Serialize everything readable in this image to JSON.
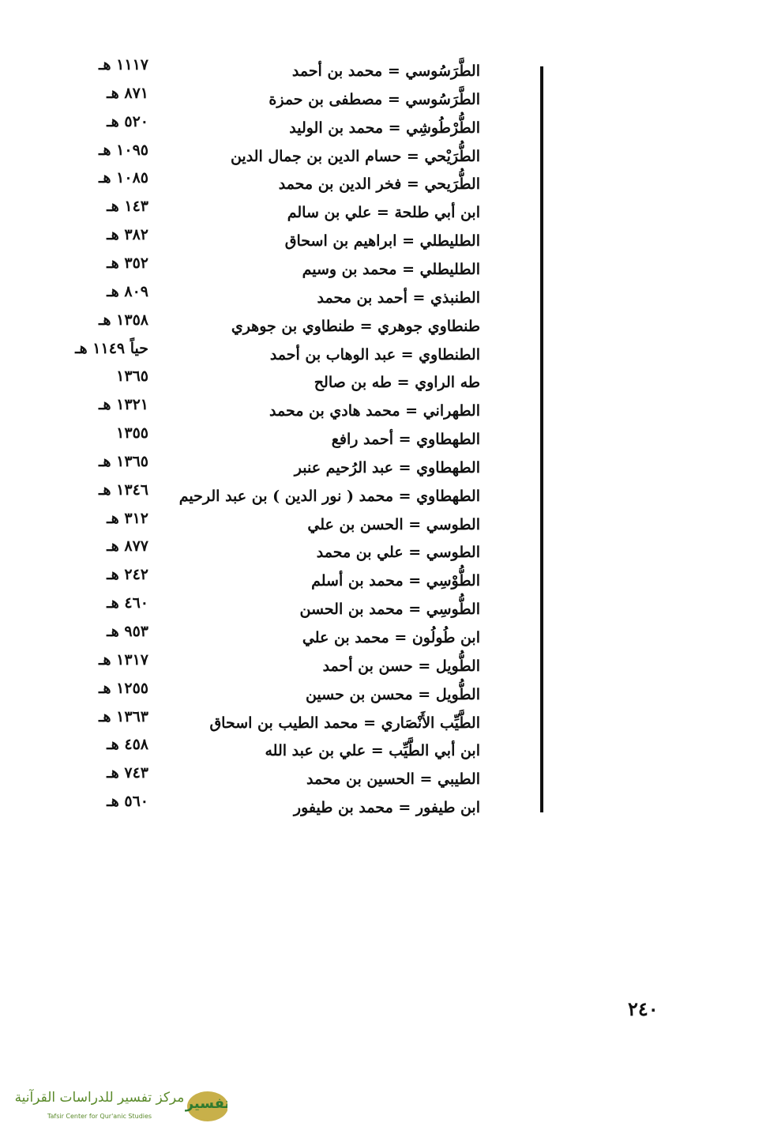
{
  "entries": [
    {
      "name": "الطَّرَسُوسي = محمد بن أحمد",
      "year": "١١١٧ هـ"
    },
    {
      "name": "الطَّرَسُوسي = مصطفى بن حمزة",
      "year": "٨٧١ هـ"
    },
    {
      "name": "الطُّرْطُوشِي = محمد بن الوليد",
      "year": "٥٢٠ هـ"
    },
    {
      "name": "الطُّرَيْحي = حسام الدين بن جمال الدين",
      "year": "١٠٩٥ هـ"
    },
    {
      "name": "الطُّرَيحي = فخر الدين بن محمد",
      "year": "١٠٨٥ هـ"
    },
    {
      "name": "ابن أبي طلحة = علي بن سالم",
      "year": "١٤٣ هـ"
    },
    {
      "name": "الطليطلي = ابراهيم بن اسحاق",
      "year": "٣٨٢ هـ"
    },
    {
      "name": "الطليطلي = محمد بن وسيم",
      "year": "٣٥٢ هـ"
    },
    {
      "name": "الطنبذي = أحمد بن محمد",
      "year": "٨٠٩ هـ"
    },
    {
      "name": "طنطاوي جوهري = طنطاوي بن جوهري",
      "year": "١٣٥٨ هـ"
    },
    {
      "name": "الطنطاوي = عبد الوهاب بن أحمد",
      "year": "حياً ١١٤٩ هـ"
    },
    {
      "name": "طه الراوي = طه بن صالح",
      "year": "١٣٦٥"
    },
    {
      "name": "الطهراني = محمد هادي بن محمد",
      "year": "١٣٢١ هـ"
    },
    {
      "name": "الطهطاوي = أحمد رافع",
      "year": "١٣٥٥"
    },
    {
      "name": "الطهطاوي = عبد الرُحيم عنبر",
      "year": "١٣٦٥ هـ"
    },
    {
      "name": "الطهطاوي = محمد ( نور الدين ) بن عبد الرحيم",
      "year": "١٣٤٦ هـ"
    },
    {
      "name": "الطوسي = الحسن بن علي",
      "year": "٣١٢ هـ"
    },
    {
      "name": "الطوسي = علي بن محمد",
      "year": "٨٧٧ هـ"
    },
    {
      "name": "الطُّوْسِي = محمد بن أسلم",
      "year": "٢٤٢ هـ"
    },
    {
      "name": "الطُّوسِي = محمد بن الحسن",
      "year": "٤٦٠ هـ"
    },
    {
      "name": "ابن طُولُون = محمد بن علي",
      "year": "٩٥٣ هـ"
    },
    {
      "name": "الطُّويل = حسن بن أحمد",
      "year": "١٣١٧ هـ"
    },
    {
      "name": "الطُّويل = محسن بن حسين",
      "year": "١٢٥٥ هـ"
    },
    {
      "name": "الطَّيِّب الأَنْصَاري = محمد الطيب بن اسحاق",
      "year": "١٣٦٣ هـ"
    },
    {
      "name": "ابن أبي الطَّيِّب = علي بن عبد الله",
      "year": "٤٥٨ هـ"
    },
    {
      "name": "الطيبي = الحسين بن محمد",
      "year": "٧٤٣ هـ"
    },
    {
      "name": "ابن طيفور = محمد بن طيفور",
      "year": "٥٦٠ هـ"
    }
  ],
  "page_number": "٢٤٠",
  "logo": {
    "mark": "تفسير",
    "arabic": "مركز تفسير للدراسات القرآنية",
    "english": "Tafsir Center for Qur'anic Studies"
  }
}
